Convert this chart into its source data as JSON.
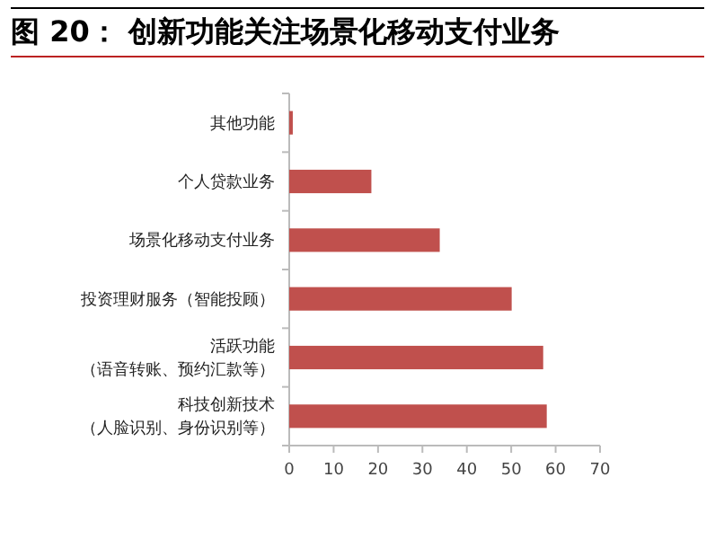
{
  "chart_data": {
    "type": "bar",
    "orientation": "horizontal",
    "title": "图 20： 创新功能关注场景化移动支付业务",
    "categories": [
      "其他功能",
      "个人贷款业务",
      "场景化移动支付业务",
      "投资理财服务（智能投顾）",
      "活跃功能（语音转账、预约汇款等）",
      "科技创新技术（人脸识别、身份识别等）"
    ],
    "values": [
      0.8,
      18.5,
      33.9,
      50.1,
      57.2,
      58.0
    ],
    "color": "#c0504d",
    "xlim": [
      0,
      70
    ],
    "xticks": [
      0,
      10,
      20,
      30,
      40,
      50,
      60,
      70
    ],
    "grid": false
  }
}
